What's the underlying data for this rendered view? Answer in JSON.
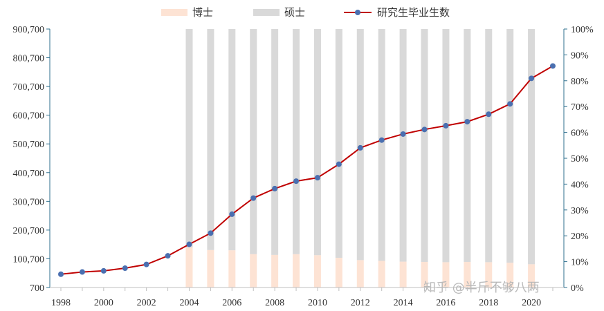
{
  "chart_data": {
    "type": "bar+line",
    "legend": {
      "placement": "top-center",
      "items": [
        {
          "label": "博士",
          "kind": "bar",
          "color": "#fde3d4"
        },
        {
          "label": "硕士",
          "kind": "bar",
          "color": "#d9d9d9"
        },
        {
          "label": "研究生毕业生数",
          "kind": "line",
          "color": "#c00000",
          "marker_color": "#4a6fb0"
        }
      ]
    },
    "y_left": {
      "ticks": [
        "900,700",
        "800,700",
        "700,700",
        "600,700",
        "500,700",
        "400,700",
        "300,700",
        "200,700",
        "100,700",
        "700"
      ],
      "range": [
        700,
        900700
      ]
    },
    "y_right": {
      "ticks": [
        "100%",
        "90%",
        "80%",
        "70%",
        "60%",
        "50%",
        "40%",
        "30%",
        "20%",
        "10%",
        "0%"
      ],
      "range": [
        0,
        100
      ]
    },
    "x_ticks": [
      "1998",
      "2000",
      "2002",
      "2004",
      "2006",
      "2008",
      "2010",
      "2012",
      "2014",
      "2016",
      "2018",
      "2020"
    ],
    "grid": false,
    "series_line": {
      "name": "研究生毕业生数",
      "x": [
        1998,
        1999,
        2000,
        2001,
        2002,
        2003,
        2004,
        2005,
        2006,
        2007,
        2008,
        2009,
        2010,
        2011,
        2012,
        2013,
        2014,
        2015,
        2016,
        2017,
        2018,
        2019,
        2020,
        2021
      ],
      "values": [
        47000,
        54700,
        58700,
        68000,
        81000,
        111000,
        151000,
        190000,
        256000,
        312000,
        345000,
        371000,
        383000,
        430000,
        487000,
        514000,
        535000,
        551000,
        564000,
        578000,
        604000,
        640000,
        729000,
        772000
      ]
    },
    "series_share": {
      "years": [
        2004,
        2005,
        2006,
        2007,
        2008,
        2009,
        2010,
        2011,
        2012,
        2013,
        2014,
        2015,
        2016,
        2017,
        2018,
        2019,
        2020
      ],
      "doctor_pct": [
        15.5,
        14.5,
        14.4,
        12.9,
        12.6,
        12.9,
        12.5,
        11.5,
        10.6,
        10.3,
        10.0,
        9.9,
        9.8,
        9.9,
        9.8,
        9.6,
        9.0
      ],
      "master_pct": [
        84.5,
        85.5,
        85.6,
        87.1,
        87.4,
        87.1,
        87.5,
        88.5,
        89.4,
        89.7,
        90.0,
        90.1,
        90.2,
        90.1,
        90.2,
        90.4,
        91.0
      ]
    }
  },
  "watermark": "知乎 @半斤不够八两"
}
